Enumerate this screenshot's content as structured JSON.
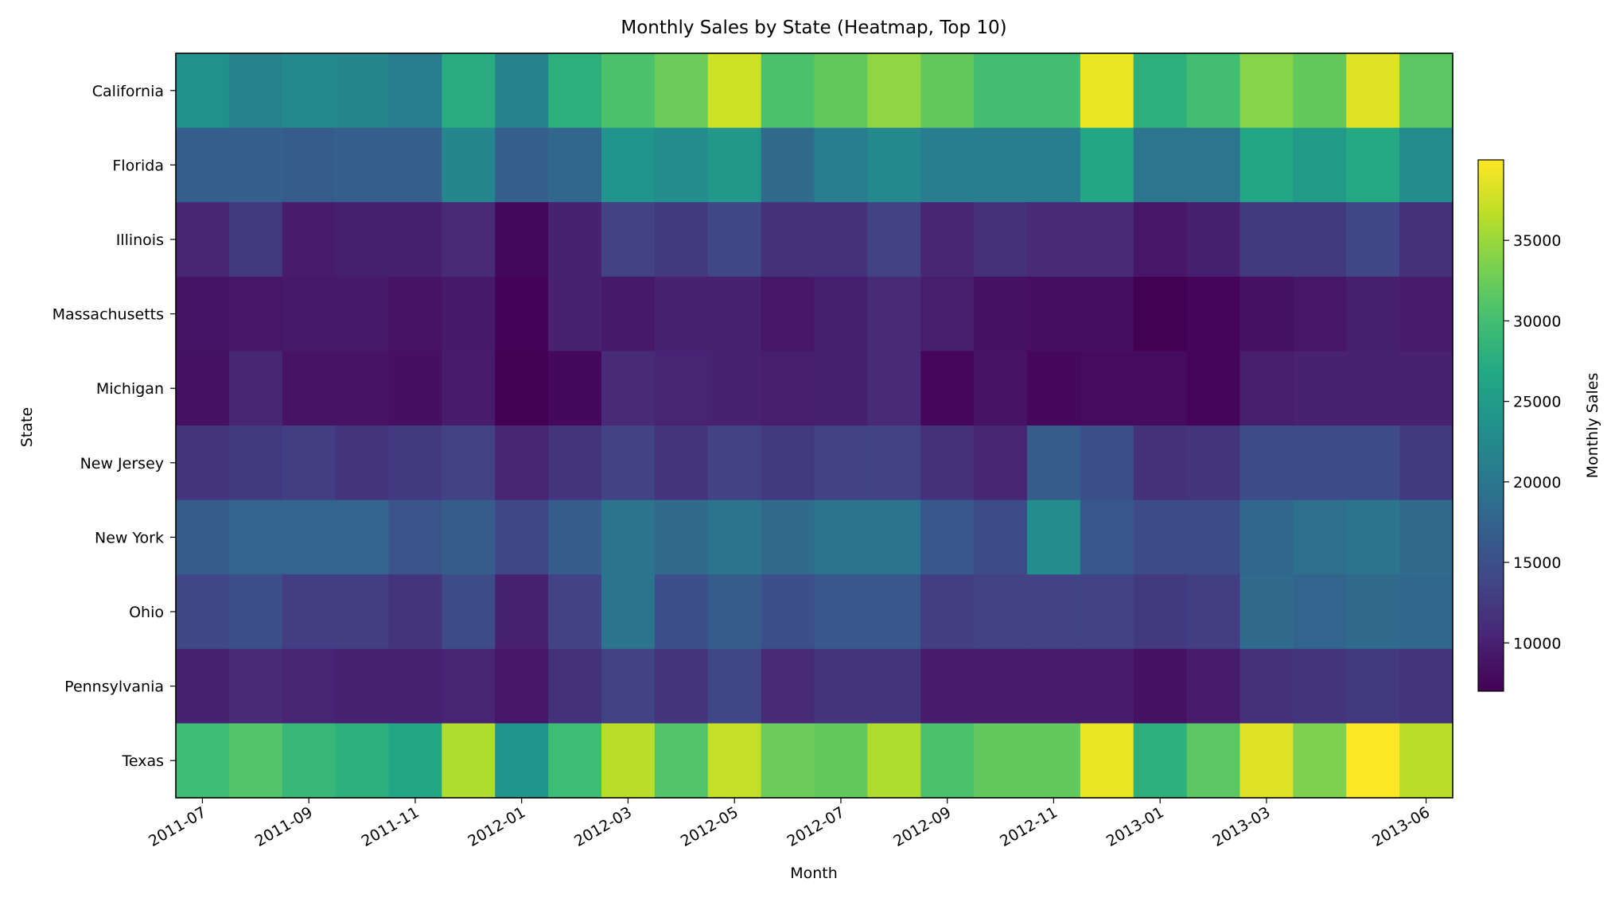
{
  "chart_data": {
    "type": "heatmap",
    "title": "Monthly Sales by State (Heatmap, Top 10)",
    "xlabel": "Month",
    "ylabel": "State",
    "colorbar_label": "Monthly Sales",
    "colormap": "viridis",
    "color_range": [
      7000,
      40000
    ],
    "colorbar_ticks": [
      "10000",
      "15000",
      "20000",
      "25000",
      "30000",
      "35000"
    ],
    "months": [
      "2011-07",
      "2011-08",
      "2011-09",
      "2011-10",
      "2011-11",
      "2011-12",
      "2012-01",
      "2012-02",
      "2012-03",
      "2012-04",
      "2012-05",
      "2012-06",
      "2012-07",
      "2012-08",
      "2012-09",
      "2012-10",
      "2012-11",
      "2012-12",
      "2013-01",
      "2013-02",
      "2013-03",
      "2013-04",
      "2013-05",
      "2013-06"
    ],
    "x_tick_labels": [
      "2011-07",
      "2011-09",
      "2011-11",
      "2012-01",
      "2012-03",
      "2012-05",
      "2012-07",
      "2012-09",
      "2012-11",
      "2013-01",
      "2013-03",
      "2013-06"
    ],
    "states": [
      "California",
      "Florida",
      "Illinois",
      "Massachusetts",
      "Michigan",
      "New Jersey",
      "New York",
      "Ohio",
      "Pennsylvania",
      "Texas"
    ],
    "values": [
      [
        23500,
        21500,
        22500,
        22000,
        21000,
        27500,
        21500,
        28000,
        30500,
        32500,
        37500,
        30500,
        32000,
        34500,
        32000,
        30000,
        30000,
        39000,
        28000,
        30000,
        34000,
        32000,
        38500,
        31500
      ],
      [
        17000,
        17000,
        16500,
        17000,
        17000,
        22000,
        17000,
        18000,
        24000,
        23000,
        24500,
        18500,
        21000,
        22500,
        21000,
        21000,
        21000,
        26500,
        20000,
        20000,
        26500,
        25000,
        27000,
        23000
      ],
      [
        10500,
        12500,
        9500,
        9800,
        9800,
        11000,
        7800,
        10000,
        13500,
        12500,
        14000,
        11500,
        11500,
        13500,
        10500,
        11500,
        11000,
        11000,
        9000,
        9800,
        12500,
        12500,
        14000,
        11500
      ],
      [
        8800,
        9000,
        9300,
        9300,
        8700,
        9300,
        7200,
        10000,
        9300,
        10000,
        10000,
        9000,
        9800,
        11000,
        9700,
        8500,
        8300,
        8300,
        7000,
        7500,
        8500,
        9000,
        9800,
        9500
      ],
      [
        8500,
        10500,
        8700,
        8700,
        8300,
        9500,
        7000,
        7800,
        11000,
        10300,
        10000,
        9700,
        9800,
        11000,
        7600,
        8700,
        7700,
        8000,
        8000,
        7400,
        9700,
        10000,
        10000,
        10000
      ],
      [
        12000,
        12500,
        13000,
        12000,
        12500,
        13500,
        10300,
        12000,
        13500,
        12000,
        13500,
        12500,
        13500,
        13500,
        11500,
        10500,
        16500,
        15000,
        11500,
        12000,
        14500,
        14500,
        14500,
        12500
      ],
      [
        16500,
        17500,
        17500,
        17500,
        15500,
        16500,
        14000,
        16500,
        19500,
        18500,
        19500,
        18500,
        19500,
        19500,
        16000,
        14500,
        23000,
        16000,
        14500,
        14500,
        18000,
        19000,
        19500,
        18500
      ],
      [
        14000,
        15000,
        13000,
        13000,
        12000,
        14500,
        10000,
        13500,
        19500,
        15000,
        16500,
        15000,
        16000,
        16000,
        13000,
        13500,
        13500,
        13500,
        12500,
        13000,
        18500,
        17500,
        18500,
        18000
      ],
      [
        10000,
        11000,
        10300,
        10000,
        10000,
        10300,
        9000,
        11500,
        13500,
        12000,
        14000,
        11000,
        12000,
        12000,
        9500,
        9500,
        9500,
        9500,
        8500,
        9500,
        11500,
        12000,
        12500,
        12000
      ],
      [
        29500,
        31000,
        29000,
        28000,
        26500,
        36000,
        24000,
        29500,
        36500,
        31000,
        37000,
        32500,
        32000,
        36000,
        30500,
        32000,
        32000,
        39000,
        28000,
        31500,
        38500,
        33500,
        40000,
        36500
      ]
    ]
  }
}
